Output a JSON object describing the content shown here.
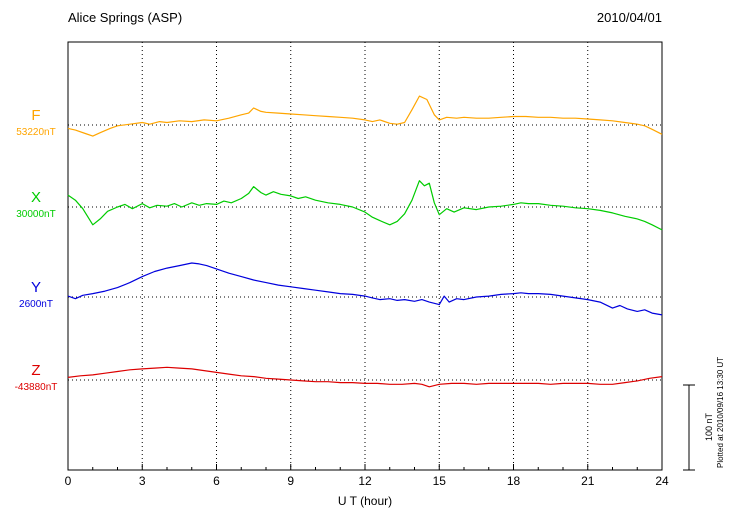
{
  "header": {
    "title": "Alice Springs (ASP)",
    "date": "2010/04/01"
  },
  "xaxis": {
    "label": "U T (hour)",
    "tick_labels": [
      "0",
      "3",
      "6",
      "9",
      "12",
      "15",
      "18",
      "21",
      "24"
    ]
  },
  "scale_bar": {
    "label": "100 nT"
  },
  "footer_note": "Plotted at 2010/09/16 13:30 UT",
  "chart_data": {
    "type": "line",
    "title": "Alice Springs (ASP) magnetogram",
    "xlabel": "U T (hour)",
    "x_range": [
      0,
      24
    ],
    "x_ticks": [
      0,
      3,
      6,
      9,
      12,
      15,
      18,
      21,
      24
    ],
    "y_scale_reference": {
      "label": "100 nT",
      "nT": 100
    },
    "grid": {
      "vertical_dotted_every_hours": 3,
      "horizontal_dotted_baseline_per_series": true
    },
    "points_unit": "nT offset from series baseline, x in UT hours",
    "series": [
      {
        "name": "F",
        "baseline_label": "53220nT",
        "baseline_nT": 53220,
        "color": "#ffa500",
        "points": [
          [
            0,
            -4
          ],
          [
            0.3,
            -6
          ],
          [
            0.7,
            -10
          ],
          [
            1,
            -13
          ],
          [
            1.3,
            -9
          ],
          [
            1.7,
            -4
          ],
          [
            2,
            -1
          ],
          [
            2.5,
            1
          ],
          [
            3,
            3
          ],
          [
            3.3,
            1
          ],
          [
            3.7,
            4
          ],
          [
            4,
            3
          ],
          [
            4.5,
            5
          ],
          [
            5,
            4
          ],
          [
            5.5,
            6
          ],
          [
            6,
            5
          ],
          [
            6.5,
            8
          ],
          [
            7,
            12
          ],
          [
            7.3,
            14
          ],
          [
            7.5,
            20
          ],
          [
            7.8,
            16
          ],
          [
            8,
            15
          ],
          [
            8.5,
            14
          ],
          [
            9,
            13
          ],
          [
            9.5,
            12
          ],
          [
            10,
            11
          ],
          [
            10.5,
            10
          ],
          [
            11,
            9
          ],
          [
            11.5,
            8
          ],
          [
            12,
            6
          ],
          [
            12.3,
            4
          ],
          [
            12.6,
            6
          ],
          [
            13,
            2
          ],
          [
            13.3,
            1
          ],
          [
            13.6,
            3
          ],
          [
            13.9,
            18
          ],
          [
            14.2,
            34
          ],
          [
            14.5,
            30
          ],
          [
            14.8,
            12
          ],
          [
            15,
            6
          ],
          [
            15.3,
            9
          ],
          [
            15.7,
            8
          ],
          [
            16,
            9
          ],
          [
            16.5,
            8
          ],
          [
            17,
            8
          ],
          [
            17.5,
            9
          ],
          [
            18,
            10
          ],
          [
            18.5,
            10
          ],
          [
            19,
            9
          ],
          [
            19.5,
            9
          ],
          [
            20,
            8
          ],
          [
            20.5,
            8
          ],
          [
            21,
            7
          ],
          [
            21.5,
            6
          ],
          [
            22,
            5
          ],
          [
            22.5,
            3
          ],
          [
            23,
            1
          ],
          [
            23.3,
            -1
          ],
          [
            23.6,
            -5
          ],
          [
            24,
            -11
          ]
        ]
      },
      {
        "name": "X",
        "baseline_label": "30000nT",
        "baseline_nT": 30000,
        "color": "#00cc00",
        "points": [
          [
            0,
            14
          ],
          [
            0.3,
            8
          ],
          [
            0.6,
            -2
          ],
          [
            1,
            -21
          ],
          [
            1.3,
            -14
          ],
          [
            1.6,
            -5
          ],
          [
            2,
            0
          ],
          [
            2.3,
            3
          ],
          [
            2.6,
            -2
          ],
          [
            3,
            4
          ],
          [
            3.3,
            -1
          ],
          [
            3.6,
            2
          ],
          [
            4,
            1
          ],
          [
            4.3,
            4
          ],
          [
            4.6,
            0
          ],
          [
            5,
            5
          ],
          [
            5.3,
            2
          ],
          [
            5.6,
            4
          ],
          [
            6,
            3
          ],
          [
            6.3,
            7
          ],
          [
            6.6,
            5
          ],
          [
            7,
            10
          ],
          [
            7.3,
            16
          ],
          [
            7.5,
            24
          ],
          [
            7.8,
            17
          ],
          [
            8,
            14
          ],
          [
            8.3,
            18
          ],
          [
            8.6,
            15
          ],
          [
            9,
            13
          ],
          [
            9.3,
            10
          ],
          [
            9.6,
            12
          ],
          [
            10,
            8
          ],
          [
            10.5,
            5
          ],
          [
            11,
            3
          ],
          [
            11.5,
            0
          ],
          [
            12,
            -6
          ],
          [
            12.3,
            -12
          ],
          [
            12.6,
            -16
          ],
          [
            13,
            -21
          ],
          [
            13.3,
            -17
          ],
          [
            13.6,
            -8
          ],
          [
            13.9,
            8
          ],
          [
            14.2,
            31
          ],
          [
            14.4,
            25
          ],
          [
            14.6,
            28
          ],
          [
            14.8,
            5
          ],
          [
            15,
            -9
          ],
          [
            15.3,
            -2
          ],
          [
            15.6,
            -6
          ],
          [
            16,
            -1
          ],
          [
            16.5,
            -3
          ],
          [
            17,
            0
          ],
          [
            17.5,
            1
          ],
          [
            18,
            3
          ],
          [
            18.3,
            5
          ],
          [
            18.6,
            4
          ],
          [
            19,
            4
          ],
          [
            19.5,
            2
          ],
          [
            20,
            1
          ],
          [
            20.5,
            -1
          ],
          [
            21,
            -2
          ],
          [
            21.5,
            -4
          ],
          [
            22,
            -7
          ],
          [
            22.5,
            -11
          ],
          [
            23,
            -14
          ],
          [
            23.3,
            -17
          ],
          [
            23.6,
            -21
          ],
          [
            24,
            -27
          ]
        ]
      },
      {
        "name": "Y",
        "baseline_label": "2600nT",
        "baseline_nT": 2600,
        "color": "#0000dd",
        "points": [
          [
            0,
            1
          ],
          [
            0.3,
            -2
          ],
          [
            0.6,
            2
          ],
          [
            1,
            4
          ],
          [
            1.5,
            7
          ],
          [
            2,
            11
          ],
          [
            2.5,
            17
          ],
          [
            3,
            24
          ],
          [
            3.5,
            30
          ],
          [
            4,
            34
          ],
          [
            4.5,
            37
          ],
          [
            5,
            40
          ],
          [
            5.3,
            39
          ],
          [
            5.6,
            37
          ],
          [
            6,
            33
          ],
          [
            6.5,
            28
          ],
          [
            7,
            24
          ],
          [
            7.5,
            20
          ],
          [
            8,
            17
          ],
          [
            8.5,
            14
          ],
          [
            9,
            12
          ],
          [
            9.5,
            10
          ],
          [
            10,
            8
          ],
          [
            10.5,
            6
          ],
          [
            11,
            4
          ],
          [
            11.5,
            3
          ],
          [
            12,
            1
          ],
          [
            12.3,
            -1
          ],
          [
            12.6,
            -3
          ],
          [
            13,
            -2
          ],
          [
            13.3,
            -4
          ],
          [
            13.6,
            -3
          ],
          [
            14,
            -5
          ],
          [
            14.3,
            -3
          ],
          [
            14.6,
            -6
          ],
          [
            15,
            -9
          ],
          [
            15.2,
            1
          ],
          [
            15.4,
            -6
          ],
          [
            15.7,
            -2
          ],
          [
            16,
            -3
          ],
          [
            16.5,
            0
          ],
          [
            17,
            1
          ],
          [
            17.5,
            3
          ],
          [
            18,
            4
          ],
          [
            18.3,
            5
          ],
          [
            18.6,
            4
          ],
          [
            19,
            4
          ],
          [
            19.5,
            3
          ],
          [
            20,
            1
          ],
          [
            20.5,
            -1
          ],
          [
            21,
            -3
          ],
          [
            21.5,
            -6
          ],
          [
            22,
            -13
          ],
          [
            22.3,
            -10
          ],
          [
            22.6,
            -14
          ],
          [
            23,
            -17
          ],
          [
            23.3,
            -15
          ],
          [
            23.6,
            -19
          ],
          [
            24,
            -21
          ]
        ]
      },
      {
        "name": "Z",
        "baseline_label": "-43880nT",
        "baseline_nT": -43880,
        "color": "#dd0000",
        "points": [
          [
            0,
            3
          ],
          [
            0.5,
            5
          ],
          [
            1,
            6
          ],
          [
            1.5,
            8
          ],
          [
            2,
            10
          ],
          [
            2.5,
            12
          ],
          [
            3,
            13
          ],
          [
            3.5,
            14
          ],
          [
            4,
            15
          ],
          [
            4.5,
            14
          ],
          [
            5,
            13
          ],
          [
            5.5,
            11
          ],
          [
            6,
            9
          ],
          [
            6.5,
            7
          ],
          [
            7,
            5
          ],
          [
            7.5,
            4
          ],
          [
            8,
            2
          ],
          [
            8.5,
            1
          ],
          [
            9,
            0
          ],
          [
            9.5,
            -1
          ],
          [
            10,
            -2
          ],
          [
            10.5,
            -2
          ],
          [
            11,
            -3
          ],
          [
            11.5,
            -3
          ],
          [
            12,
            -4
          ],
          [
            12.5,
            -4
          ],
          [
            13,
            -5
          ],
          [
            13.5,
            -5
          ],
          [
            14,
            -4
          ],
          [
            14.3,
            -5
          ],
          [
            14.6,
            -8
          ],
          [
            15,
            -5
          ],
          [
            15.5,
            -4
          ],
          [
            16,
            -4
          ],
          [
            16.5,
            -5
          ],
          [
            17,
            -4
          ],
          [
            17.5,
            -4
          ],
          [
            18,
            -4
          ],
          [
            18.5,
            -4
          ],
          [
            19,
            -4
          ],
          [
            19.5,
            -5
          ],
          [
            20,
            -4
          ],
          [
            20.5,
            -4
          ],
          [
            21,
            -4
          ],
          [
            21.5,
            -5
          ],
          [
            22,
            -5
          ],
          [
            22.5,
            -3
          ],
          [
            23,
            -1
          ],
          [
            23.5,
            2
          ],
          [
            24,
            4
          ]
        ]
      }
    ]
  }
}
